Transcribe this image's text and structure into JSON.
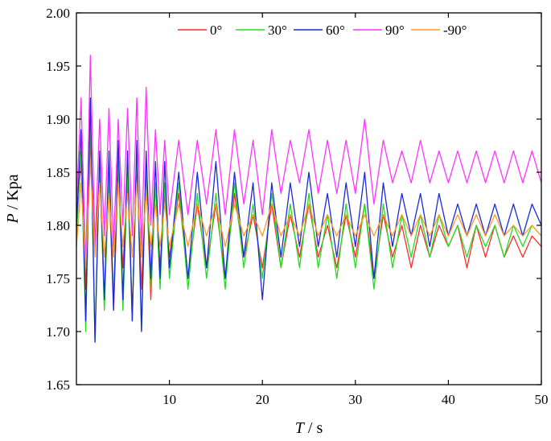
{
  "chart_data": {
    "type": "line",
    "title": "",
    "xlabel": {
      "symbol": "T",
      "unit": " / s"
    },
    "ylabel": {
      "symbol": "P",
      "unit": " / Kpa"
    },
    "xlim": [
      0,
      50
    ],
    "ylim": [
      1.65,
      2.0
    ],
    "xticks": [
      10,
      20,
      30,
      40,
      50
    ],
    "xtick_labels": [
      "10",
      "20",
      "30",
      "40",
      "50"
    ],
    "yticks": [
      1.65,
      1.7,
      1.75,
      1.8,
      1.85,
      1.9,
      1.95,
      2.0
    ],
    "ytick_labels": [
      "1.65",
      "1.70",
      "1.75",
      "1.80",
      "1.85",
      "1.90",
      "1.95",
      "2.00"
    ],
    "grid": false,
    "legend_position": "top-right",
    "series": [
      {
        "name": "0°",
        "color": "#ff2a2a",
        "x": [
          0,
          0.5,
          1,
          1.5,
          2,
          2.5,
          3,
          3.5,
          4,
          4.5,
          5,
          5.5,
          6,
          6.5,
          7,
          7.5,
          8,
          8.5,
          9,
          9.5,
          10,
          11,
          12,
          13,
          14,
          15,
          16,
          17,
          18,
          19,
          20,
          21,
          22,
          23,
          24,
          25,
          26,
          27,
          28,
          29,
          30,
          31,
          32,
          33,
          34,
          35,
          36,
          37,
          38,
          39,
          40,
          41,
          42,
          43,
          44,
          45,
          46,
          47,
          48,
          49,
          50
        ],
        "values": [
          1.8,
          1.86,
          1.74,
          1.88,
          1.78,
          1.85,
          1.73,
          1.84,
          1.72,
          1.85,
          1.76,
          1.84,
          1.72,
          1.86,
          1.74,
          1.85,
          1.73,
          1.84,
          1.76,
          1.83,
          1.77,
          1.83,
          1.75,
          1.82,
          1.76,
          1.82,
          1.75,
          1.83,
          1.77,
          1.81,
          1.76,
          1.82,
          1.76,
          1.81,
          1.77,
          1.82,
          1.77,
          1.8,
          1.76,
          1.81,
          1.77,
          1.82,
          1.75,
          1.81,
          1.77,
          1.8,
          1.76,
          1.8,
          1.77,
          1.8,
          1.78,
          1.8,
          1.76,
          1.8,
          1.77,
          1.8,
          1.77,
          1.79,
          1.77,
          1.79,
          1.78
        ]
      },
      {
        "name": "30°",
        "color": "#22dd22",
        "x": [
          0,
          0.5,
          1,
          1.5,
          2,
          2.5,
          3,
          3.5,
          4,
          4.5,
          5,
          5.5,
          6,
          6.5,
          7,
          7.5,
          8,
          8.5,
          9,
          9.5,
          10,
          11,
          12,
          13,
          14,
          15,
          16,
          17,
          18,
          19,
          20,
          21,
          22,
          23,
          24,
          25,
          26,
          27,
          28,
          29,
          30,
          31,
          32,
          33,
          34,
          35,
          36,
          37,
          38,
          39,
          40,
          41,
          42,
          43,
          44,
          45,
          46,
          47,
          48,
          49,
          50
        ],
        "values": [
          1.79,
          1.87,
          1.7,
          1.9,
          1.69,
          1.86,
          1.72,
          1.85,
          1.73,
          1.86,
          1.72,
          1.85,
          1.71,
          1.87,
          1.7,
          1.86,
          1.74,
          1.84,
          1.74,
          1.84,
          1.75,
          1.84,
          1.74,
          1.83,
          1.75,
          1.83,
          1.74,
          1.84,
          1.76,
          1.82,
          1.75,
          1.83,
          1.76,
          1.82,
          1.76,
          1.83,
          1.76,
          1.81,
          1.75,
          1.82,
          1.76,
          1.82,
          1.74,
          1.82,
          1.76,
          1.81,
          1.77,
          1.81,
          1.77,
          1.81,
          1.78,
          1.8,
          1.77,
          1.8,
          1.78,
          1.8,
          1.77,
          1.8,
          1.78,
          1.8,
          1.79
        ]
      },
      {
        "name": "60°",
        "color": "#1a2ad8",
        "x": [
          0,
          0.5,
          1,
          1.5,
          2,
          2.5,
          3,
          3.5,
          4,
          4.5,
          5,
          5.5,
          6,
          6.5,
          7,
          7.5,
          8,
          8.5,
          9,
          9.5,
          10,
          11,
          12,
          13,
          14,
          15,
          16,
          17,
          18,
          19,
          20,
          21,
          22,
          23,
          24,
          25,
          26,
          27,
          28,
          29,
          30,
          31,
          32,
          33,
          34,
          35,
          36,
          37,
          38,
          39,
          40,
          41,
          42,
          43,
          44,
          45,
          46,
          47,
          48,
          49,
          50
        ],
        "values": [
          1.8,
          1.89,
          1.71,
          1.92,
          1.69,
          1.87,
          1.73,
          1.87,
          1.72,
          1.88,
          1.73,
          1.87,
          1.71,
          1.88,
          1.7,
          1.87,
          1.75,
          1.86,
          1.75,
          1.86,
          1.76,
          1.85,
          1.75,
          1.85,
          1.76,
          1.86,
          1.75,
          1.85,
          1.77,
          1.84,
          1.73,
          1.84,
          1.77,
          1.84,
          1.78,
          1.85,
          1.78,
          1.83,
          1.77,
          1.84,
          1.78,
          1.85,
          1.75,
          1.84,
          1.78,
          1.83,
          1.79,
          1.83,
          1.78,
          1.83,
          1.79,
          1.82,
          1.79,
          1.82,
          1.79,
          1.82,
          1.79,
          1.82,
          1.79,
          1.82,
          1.8
        ]
      },
      {
        "name": "90°",
        "color": "#ff33ff",
        "x": [
          0,
          0.5,
          1,
          1.5,
          2,
          2.5,
          3,
          3.5,
          4,
          4.5,
          5,
          5.5,
          6,
          6.5,
          7,
          7.5,
          8,
          8.5,
          9,
          9.5,
          10,
          11,
          12,
          13,
          14,
          15,
          16,
          17,
          18,
          19,
          20,
          21,
          22,
          23,
          24,
          25,
          26,
          27,
          28,
          29,
          30,
          31,
          32,
          33,
          34,
          35,
          36,
          37,
          38,
          39,
          40,
          41,
          42,
          43,
          44,
          45,
          46,
          47,
          48,
          49,
          50
        ],
        "values": [
          1.82,
          1.92,
          1.76,
          1.96,
          1.78,
          1.9,
          1.79,
          1.91,
          1.78,
          1.9,
          1.8,
          1.91,
          1.79,
          1.92,
          1.78,
          1.93,
          1.8,
          1.89,
          1.81,
          1.88,
          1.81,
          1.88,
          1.81,
          1.88,
          1.82,
          1.89,
          1.81,
          1.89,
          1.82,
          1.88,
          1.81,
          1.89,
          1.83,
          1.88,
          1.84,
          1.89,
          1.83,
          1.88,
          1.83,
          1.88,
          1.83,
          1.9,
          1.82,
          1.88,
          1.84,
          1.87,
          1.84,
          1.88,
          1.84,
          1.87,
          1.84,
          1.87,
          1.84,
          1.87,
          1.84,
          1.87,
          1.84,
          1.87,
          1.84,
          1.87,
          1.84
        ]
      },
      {
        "name": "-90°",
        "color": "#ff9922",
        "x": [
          0,
          0.5,
          1,
          1.5,
          2,
          2.5,
          3,
          3.5,
          4,
          4.5,
          5,
          5.5,
          6,
          6.5,
          7,
          7.5,
          8,
          8.5,
          9,
          9.5,
          10,
          11,
          12,
          13,
          14,
          15,
          16,
          17,
          18,
          19,
          20,
          21,
          22,
          23,
          24,
          25,
          26,
          27,
          28,
          29,
          30,
          31,
          32,
          33,
          34,
          35,
          36,
          37,
          38,
          39,
          40,
          41,
          42,
          43,
          44,
          45,
          46,
          47,
          48,
          49,
          50
        ],
        "values": [
          1.78,
          1.84,
          1.76,
          1.86,
          1.77,
          1.84,
          1.77,
          1.83,
          1.77,
          1.84,
          1.78,
          1.83,
          1.77,
          1.84,
          1.77,
          1.83,
          1.78,
          1.82,
          1.78,
          1.82,
          1.78,
          1.82,
          1.78,
          1.82,
          1.79,
          1.82,
          1.78,
          1.82,
          1.79,
          1.81,
          1.79,
          1.82,
          1.79,
          1.81,
          1.79,
          1.82,
          1.79,
          1.81,
          1.79,
          1.81,
          1.79,
          1.81,
          1.79,
          1.81,
          1.79,
          1.81,
          1.79,
          1.81,
          1.79,
          1.81,
          1.79,
          1.81,
          1.79,
          1.81,
          1.79,
          1.81,
          1.79,
          1.8,
          1.79,
          1.8,
          1.79
        ]
      }
    ]
  }
}
